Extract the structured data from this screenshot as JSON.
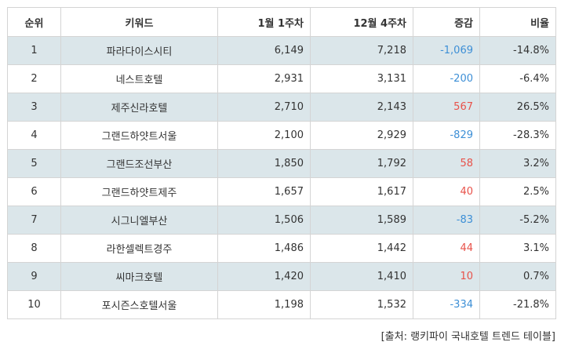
{
  "table": {
    "headers": [
      "순위",
      "키워드",
      "1월 1주차",
      "12월 4주차",
      "증감",
      "비율"
    ],
    "rows": [
      {
        "rank": "1",
        "keyword": "파라다이스시티",
        "jan_w1": "6,149",
        "dec_w4": "7,218",
        "change": "-1,069",
        "change_dir": "neg",
        "ratio": "-14.8%"
      },
      {
        "rank": "2",
        "keyword": "네스트호텔",
        "jan_w1": "2,931",
        "dec_w4": "3,131",
        "change": "-200",
        "change_dir": "neg",
        "ratio": "-6.4%"
      },
      {
        "rank": "3",
        "keyword": "제주신라호텔",
        "jan_w1": "2,710",
        "dec_w4": "2,143",
        "change": "567",
        "change_dir": "pos",
        "ratio": "26.5%"
      },
      {
        "rank": "4",
        "keyword": "그랜드하얏트서울",
        "jan_w1": "2,100",
        "dec_w4": "2,929",
        "change": "-829",
        "change_dir": "neg",
        "ratio": "-28.3%"
      },
      {
        "rank": "5",
        "keyword": "그랜드조선부산",
        "jan_w1": "1,850",
        "dec_w4": "1,792",
        "change": "58",
        "change_dir": "pos",
        "ratio": "3.2%"
      },
      {
        "rank": "6",
        "keyword": "그랜드하얏트제주",
        "jan_w1": "1,657",
        "dec_w4": "1,617",
        "change": "40",
        "change_dir": "pos",
        "ratio": "2.5%"
      },
      {
        "rank": "7",
        "keyword": "시그니엘부산",
        "jan_w1": "1,506",
        "dec_w4": "1,589",
        "change": "-83",
        "change_dir": "neg",
        "ratio": "-5.2%"
      },
      {
        "rank": "8",
        "keyword": "라한셀렉트경주",
        "jan_w1": "1,486",
        "dec_w4": "1,442",
        "change": "44",
        "change_dir": "pos",
        "ratio": "3.1%"
      },
      {
        "rank": "9",
        "keyword": "씨마크호텔",
        "jan_w1": "1,420",
        "dec_w4": "1,410",
        "change": "10",
        "change_dir": "pos",
        "ratio": "0.7%"
      },
      {
        "rank": "10",
        "keyword": "포시즌스호텔서울",
        "jan_w1": "1,198",
        "dec_w4": "1,532",
        "change": "-334",
        "change_dir": "neg",
        "ratio": "-21.8%"
      }
    ]
  },
  "source_note": "[출처: 랭키파이 국내호텔 트렌드 테이블]",
  "colors": {
    "positive": "#e8524a",
    "negative": "#3d8fd6",
    "stripe": "#dbe6ea",
    "border": "#d4d4d4"
  }
}
